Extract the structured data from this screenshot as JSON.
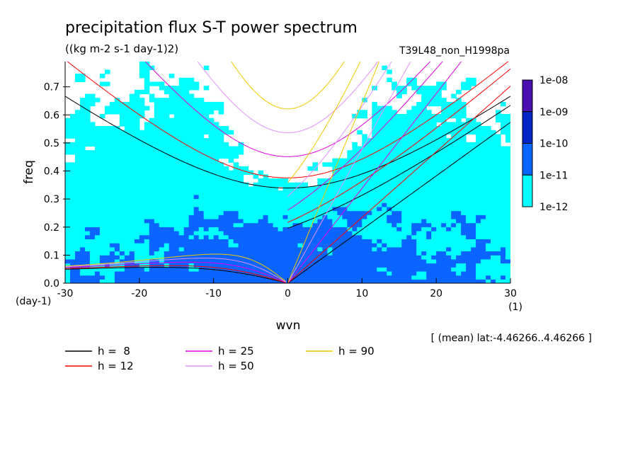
{
  "chart_data": {
    "type": "heatmap",
    "title": "precipitation flux S-T power spectrum",
    "subtitle": "((kg m-2 s-1 day-1)2)",
    "run_label": "T39L48_non_H1998pa",
    "xlabel": "wvn",
    "ylabel": "freq",
    "x_unit": "(1)",
    "y_unit": "(day-1)",
    "xlim": [
      -30,
      30
    ],
    "ylim": [
      0,
      0.79
    ],
    "x_ticks": [
      -30,
      -20,
      -10,
      0,
      10,
      20,
      30
    ],
    "y_ticks": [
      0.0,
      0.1,
      0.2,
      0.3,
      0.4,
      0.5,
      0.6,
      0.7
    ],
    "x_tick_labels": [
      "-30",
      "-20",
      "-10",
      "0",
      "10",
      "20",
      "30"
    ],
    "y_tick_labels": [
      "0.0",
      "0.1",
      "0.2",
      "0.3",
      "0.4",
      "0.5",
      "0.6",
      "0.7"
    ],
    "colorbar": {
      "labels": [
        "1e-08",
        "1e-09",
        "1e-10",
        "1e-11",
        "1e-12"
      ],
      "levels": [
        1e-12,
        1e-11,
        1e-10,
        1e-09,
        1e-08
      ],
      "colors": [
        "#00ffff",
        "#0a64ff",
        "#0026c8",
        "#4a0fb0"
      ]
    },
    "dispersion_curves": [
      {
        "label": "h =  8",
        "h": 8,
        "color": "#000000"
      },
      {
        "label": "h = 12",
        "h": 12,
        "color": "#ff0000"
      },
      {
        "label": "h = 25",
        "h": 25,
        "color": "#e000e0"
      },
      {
        "label": "h = 50",
        "h": 50,
        "color": "#e090ff"
      },
      {
        "label": "h = 90",
        "h": 90,
        "color": "#f0c800"
      }
    ],
    "annotation": "[ (mean) lat:-4.46266..4.46266 ]"
  }
}
